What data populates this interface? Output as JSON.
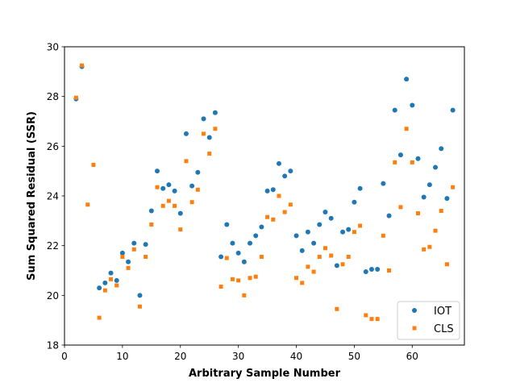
{
  "chart_data": {
    "type": "scatter",
    "title": "",
    "xlabel": "Arbitrary Sample Number",
    "ylabel": "Sum Squared Residual (SSR)",
    "xlim": [
      0,
      69
    ],
    "ylim": [
      18,
      30
    ],
    "xticks": [
      0,
      10,
      20,
      30,
      40,
      50,
      60
    ],
    "yticks": [
      18,
      20,
      22,
      24,
      26,
      28,
      30
    ],
    "grid": false,
    "legend_position": "lower-right",
    "series": [
      {
        "name": "IOT",
        "marker": "circle",
        "color": "#1f77b4",
        "x": [
          2,
          3,
          6,
          7,
          8,
          9,
          10,
          11,
          12,
          13,
          14,
          15,
          16,
          17,
          18,
          19,
          20,
          21,
          22,
          23,
          24,
          25,
          26,
          27,
          28,
          29,
          30,
          31,
          32,
          33,
          34,
          35,
          36,
          37,
          38,
          39,
          40,
          41,
          42,
          43,
          44,
          45,
          46,
          47,
          48,
          49,
          50,
          51,
          52,
          53,
          54,
          55,
          56,
          57,
          58,
          59,
          60,
          61,
          62,
          63,
          64,
          65,
          66,
          67
        ],
        "y": [
          27.9,
          29.2,
          20.3,
          20.5,
          20.9,
          20.6,
          21.7,
          21.35,
          22.1,
          20.0,
          22.05,
          23.4,
          25.0,
          24.3,
          24.45,
          24.2,
          23.3,
          26.5,
          24.4,
          24.95,
          27.1,
          26.35,
          27.35,
          21.55,
          22.85,
          22.1,
          21.7,
          21.35,
          22.1,
          22.4,
          22.75,
          24.2,
          24.25,
          25.3,
          24.8,
          25.0,
          22.4,
          21.8,
          22.55,
          22.1,
          22.85,
          23.35,
          23.1,
          21.2,
          22.55,
          22.65,
          23.75,
          24.3,
          20.95,
          21.05,
          21.05,
          24.5,
          23.2,
          27.45,
          25.65,
          28.7,
          27.65,
          25.5,
          23.95,
          24.45,
          25.15,
          25.9,
          23.9,
          27.45
        ]
      },
      {
        "name": "CLS",
        "marker": "square",
        "color": "#ff7f0e",
        "x": [
          2,
          3,
          5,
          4,
          6,
          7,
          8,
          9,
          10,
          11,
          12,
          13,
          14,
          15,
          16,
          17,
          18,
          19,
          20,
          21,
          22,
          23,
          24,
          25,
          26,
          27,
          28,
          29,
          30,
          31,
          32,
          33,
          34,
          35,
          36,
          37,
          38,
          39,
          40,
          41,
          42,
          43,
          44,
          45,
          46,
          47,
          48,
          49,
          50,
          51,
          52,
          53,
          54,
          55,
          56,
          57,
          58,
          59,
          60,
          61,
          62,
          63,
          64,
          65,
          66,
          67
        ],
        "y": [
          27.95,
          29.25,
          25.25,
          23.65,
          19.1,
          20.2,
          20.65,
          20.4,
          21.55,
          21.1,
          21.85,
          19.55,
          21.55,
          22.85,
          24.35,
          23.6,
          23.8,
          23.6,
          22.65,
          25.4,
          23.75,
          24.25,
          26.5,
          25.7,
          26.7,
          20.35,
          21.5,
          20.65,
          20.6,
          20.0,
          20.7,
          20.75,
          21.55,
          23.15,
          23.05,
          24.0,
          23.35,
          23.65,
          20.7,
          20.5,
          21.15,
          20.95,
          21.55,
          21.9,
          21.6,
          19.45,
          21.25,
          21.55,
          22.55,
          22.8,
          19.2,
          19.05,
          19.05,
          22.4,
          21.0,
          25.35,
          23.55,
          26.7,
          25.35,
          23.3,
          21.85,
          21.95,
          22.6,
          23.4,
          21.25,
          24.35
        ]
      }
    ]
  }
}
